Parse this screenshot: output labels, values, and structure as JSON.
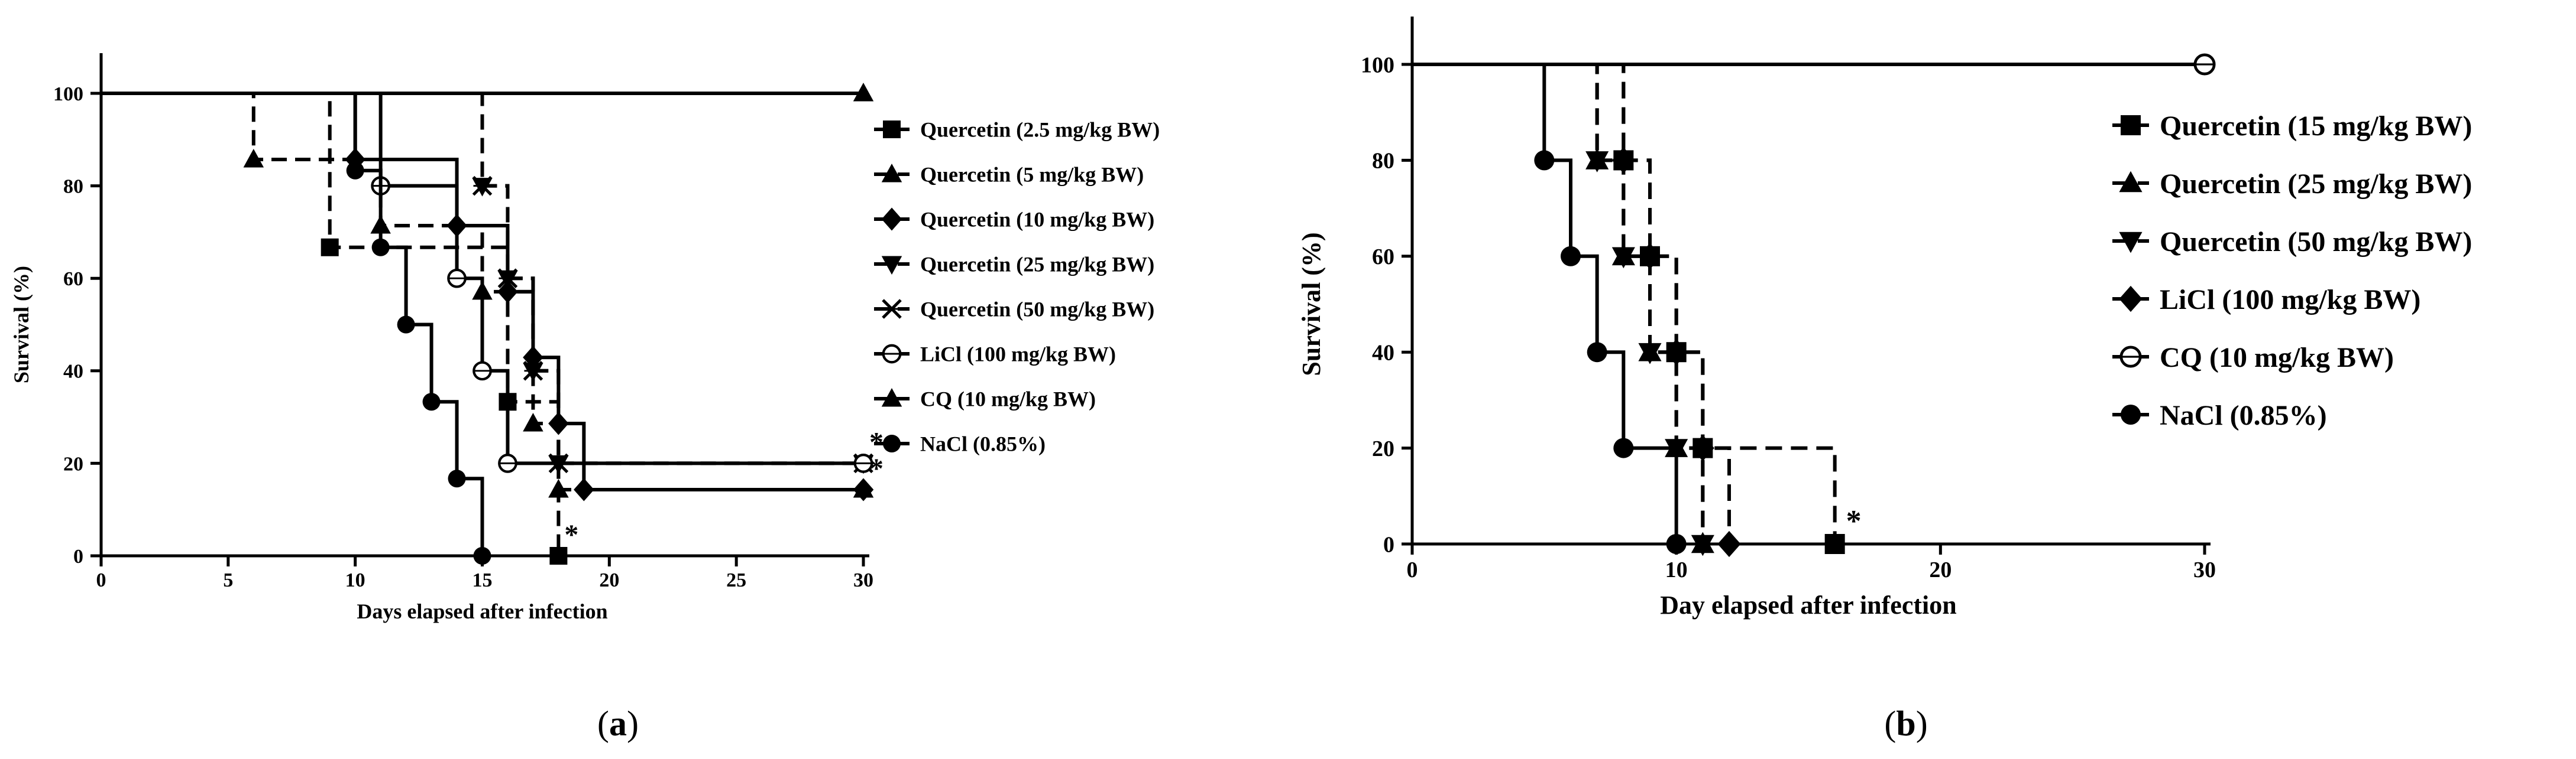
{
  "colors": {
    "ink": "#000000",
    "background": "#ffffff"
  },
  "chart_data": [
    {
      "type": "line",
      "step": true,
      "panel_label": "a",
      "xlabel": "Days elapsed after infection",
      "ylabel": "Survival (%)",
      "xlim": [
        0,
        30
      ],
      "ylim": [
        0,
        100
      ],
      "xticks": [
        0,
        5,
        10,
        15,
        20,
        25,
        30
      ],
      "yticks": [
        0,
        20,
        40,
        60,
        80,
        100
      ],
      "legend_position": "right",
      "series": [
        {
          "name": "Quercetin (2.5 mg/kg BW)",
          "marker": "square",
          "dash": true,
          "x": [
            0,
            9,
            16,
            18
          ],
          "y": [
            100,
            66.7,
            33.3,
            0
          ],
          "end_x": 18
        },
        {
          "name": "Quercetin (5 mg/kg BW)",
          "marker": "triangle-up",
          "dash": true,
          "x": [
            0,
            6,
            11,
            15,
            17,
            18
          ],
          "y": [
            100,
            85.7,
            71.4,
            57.1,
            28.6,
            14.3
          ],
          "end_x": 30
        },
        {
          "name": "Quercetin (10 mg/kg BW)",
          "marker": "diamond",
          "dash": false,
          "x": [
            0,
            10,
            14,
            16,
            17,
            18,
            19
          ],
          "y": [
            100,
            85.7,
            71.4,
            57.1,
            42.9,
            28.6,
            14.3
          ],
          "end_x": 30
        },
        {
          "name": "Quercetin (25 mg/kg BW)",
          "marker": "triangle-down",
          "dash": true,
          "x": [
            0,
            15,
            16,
            17,
            18
          ],
          "y": [
            100,
            80,
            60,
            40,
            20
          ],
          "end_x": 30
        },
        {
          "name": "Quercetin (50 mg/kg BW)",
          "marker": "x",
          "dash": true,
          "x": [
            0,
            15,
            16,
            17,
            18
          ],
          "y": [
            100,
            80,
            60,
            40,
            20
          ],
          "end_x": 30
        },
        {
          "name": "LiCl (100 mg/kg BW)",
          "marker": "circle-open",
          "dash": false,
          "x": [
            0,
            11,
            14,
            15,
            16
          ],
          "y": [
            100,
            80,
            60,
            40,
            20
          ],
          "end_x": 30
        },
        {
          "name": "CQ (10 mg/kg BW)",
          "marker": "triangle-up",
          "dash": false,
          "x": [
            0
          ],
          "y": [
            100
          ],
          "end_x": 30
        },
        {
          "name": "NaCl (0.85%)",
          "marker": "circle",
          "dash": false,
          "x": [
            0,
            10,
            11,
            12,
            13,
            14,
            15
          ],
          "y": [
            100,
            83.3,
            66.7,
            50,
            33.3,
            16.7,
            0
          ],
          "end_x": 15
        }
      ],
      "annotations": [
        {
          "text": "*",
          "x": 18,
          "y": 0
        },
        {
          "text": "*",
          "x": 30,
          "y": 20
        },
        {
          "text": "*",
          "x": 30,
          "y": 14.3
        }
      ]
    },
    {
      "type": "line",
      "step": true,
      "panel_label": "b",
      "xlabel": "Day elapsed after infection",
      "ylabel": "Survival (%)",
      "xlim": [
        0,
        30
      ],
      "ylim": [
        0,
        100
      ],
      "xticks": [
        0,
        10,
        20,
        30
      ],
      "yticks": [
        0,
        20,
        40,
        60,
        80,
        100
      ],
      "legend_position": "right",
      "series": [
        {
          "name": "Quercetin (15 mg/kg BW)",
          "marker": "square",
          "dash": true,
          "x": [
            0,
            8,
            9,
            10,
            11,
            16
          ],
          "y": [
            100,
            80,
            60,
            40,
            20,
            0
          ],
          "end_x": 16
        },
        {
          "name": "Quercetin (25 mg/kg BW)",
          "marker": "triangle-up",
          "dash": true,
          "x": [
            0,
            7,
            8,
            9,
            10,
            11
          ],
          "y": [
            100,
            80,
            60,
            40,
            20,
            0
          ],
          "end_x": 11
        },
        {
          "name": "Quercetin (50 mg/kg BW)",
          "marker": "triangle-down",
          "dash": true,
          "x": [
            0,
            7,
            8,
            9,
            10,
            11
          ],
          "y": [
            100,
            80,
            60,
            40,
            20,
            0
          ],
          "end_x": 11
        },
        {
          "name": "LiCl (100 mg/kg BW)",
          "marker": "diamond",
          "dash": true,
          "x": [
            0,
            8,
            9,
            10,
            11,
            12
          ],
          "y": [
            100,
            80,
            60,
            40,
            20,
            0
          ],
          "end_x": 12
        },
        {
          "name": "CQ (10 mg/kg BW)",
          "marker": "circle-open",
          "dash": false,
          "x": [
            0
          ],
          "y": [
            100
          ],
          "end_x": 30
        },
        {
          "name": "NaCl (0.85%)",
          "marker": "circle",
          "dash": false,
          "x": [
            0,
            5,
            6,
            7,
            8,
            10
          ],
          "y": [
            100,
            80,
            60,
            40,
            20,
            0
          ],
          "end_x": 10
        }
      ],
      "annotations": [
        {
          "text": "*",
          "x": 16,
          "y": 0
        }
      ]
    }
  ]
}
